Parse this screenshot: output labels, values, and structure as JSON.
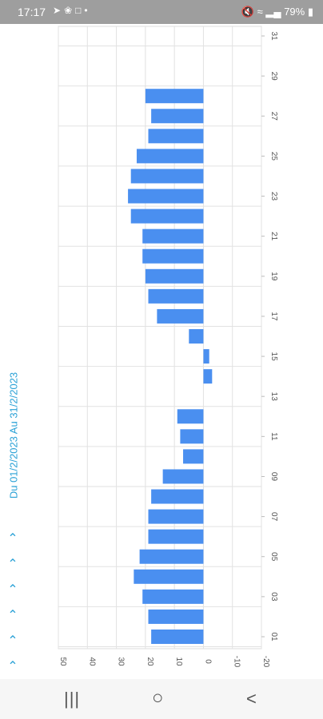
{
  "status_bar": {
    "time": "17:17",
    "left_icons": [
      "arrow-icon",
      "leaf-icon",
      "b-icon",
      "dot-icon"
    ],
    "battery": "79%"
  },
  "period_label": "Du 01/2/2023 Au 31/2/2023",
  "chevrons": [
    "^",
    "^",
    "^",
    "^",
    "^",
    "^"
  ],
  "chart_data": {
    "type": "bar",
    "orientation": "horizontal-rotated",
    "categories": [
      "01",
      "02",
      "03",
      "04",
      "05",
      "06",
      "07",
      "08",
      "09",
      "10",
      "11",
      "12",
      "13",
      "14",
      "15",
      "16",
      "17",
      "18",
      "19",
      "20",
      "21",
      "22",
      "23",
      "24",
      "25",
      "26",
      "27",
      "28",
      "29",
      "30",
      "31"
    ],
    "values": [
      18,
      19,
      21,
      24,
      22,
      19,
      19,
      18,
      14,
      7,
      8,
      9,
      null,
      -3,
      -2,
      5,
      16,
      19,
      20,
      21,
      21,
      25,
      26,
      25,
      23,
      19,
      18,
      20,
      null,
      null,
      null
    ],
    "xtick_labels": [
      "01",
      "03",
      "05",
      "07",
      "09",
      "11",
      "13",
      "15",
      "17",
      "19",
      "21",
      "23",
      "25",
      "27",
      "29",
      "31"
    ],
    "ytick_labels": [
      "50",
      "40",
      "30",
      "20",
      "10",
      "0",
      "-10",
      "-20"
    ],
    "ylim": [
      -20,
      50
    ],
    "grid": true,
    "bar_color": "#4a8ff0"
  },
  "nav": {
    "recents": "|||",
    "home": "○",
    "back": "<"
  }
}
